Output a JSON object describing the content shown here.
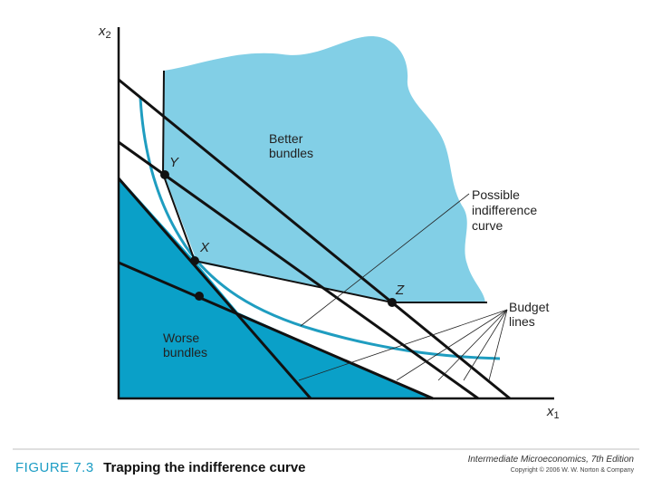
{
  "axes": {
    "y_var": "x",
    "y_sub": "2",
    "x_var": "x",
    "x_sub": "1"
  },
  "regions": {
    "better": [
      "Better",
      "bundles"
    ],
    "worse": [
      "Worse",
      "bundles"
    ]
  },
  "points": {
    "y": "Y",
    "x": "X",
    "z": "Z"
  },
  "annotations": {
    "indifference": [
      "Possible",
      "indifference",
      "curve"
    ],
    "budget": [
      "Budget",
      "lines"
    ]
  },
  "caption": {
    "figure_number": "FIGURE 7.3",
    "title": "Trapping the indifference curve"
  },
  "footer": {
    "book": "Intermediate Microeconomics, 7th Edition",
    "copyright": "Copyright © 2006 W. W. Norton & Company"
  },
  "colors": {
    "better_fill": "#82cfe6",
    "worse_fill": "#0aa0c8",
    "curve": "#1f9dc0",
    "ink": "#111111",
    "caption_accent": "#1a9cc4"
  }
}
